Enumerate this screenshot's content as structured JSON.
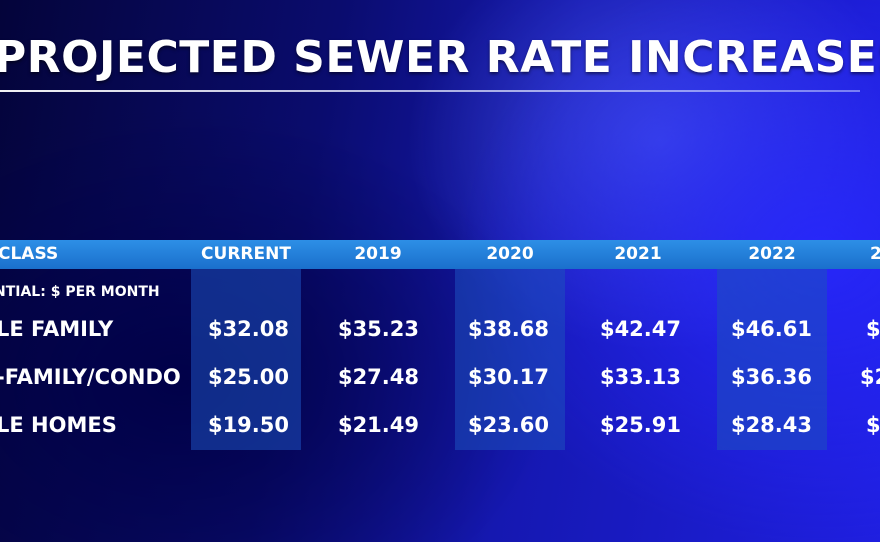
{
  "title": "PROJECTED SEWER RATE INCREASES",
  "header": {
    "class": "CLASS",
    "columns": [
      "CURRENT",
      "2019",
      "2020",
      "2021",
      "2022",
      "2"
    ]
  },
  "section_label": "NTIAL: $ PER MONTH",
  "rows": [
    {
      "class": "LE FAMILY",
      "values": [
        "$32.08",
        "$35.23",
        "$38.68",
        "$42.47",
        "$46.61",
        "$"
      ]
    },
    {
      "class": "-FAMILY/CONDO",
      "values": [
        "$25.00",
        "$27.48",
        "$30.17",
        "$33.13",
        "$36.36",
        "$2"
      ]
    },
    {
      "class": "LE HOMES",
      "values": [
        "$19.50",
        "$21.49",
        "$23.60",
        "$25.91",
        "$28.43",
        "$"
      ]
    }
  ]
}
